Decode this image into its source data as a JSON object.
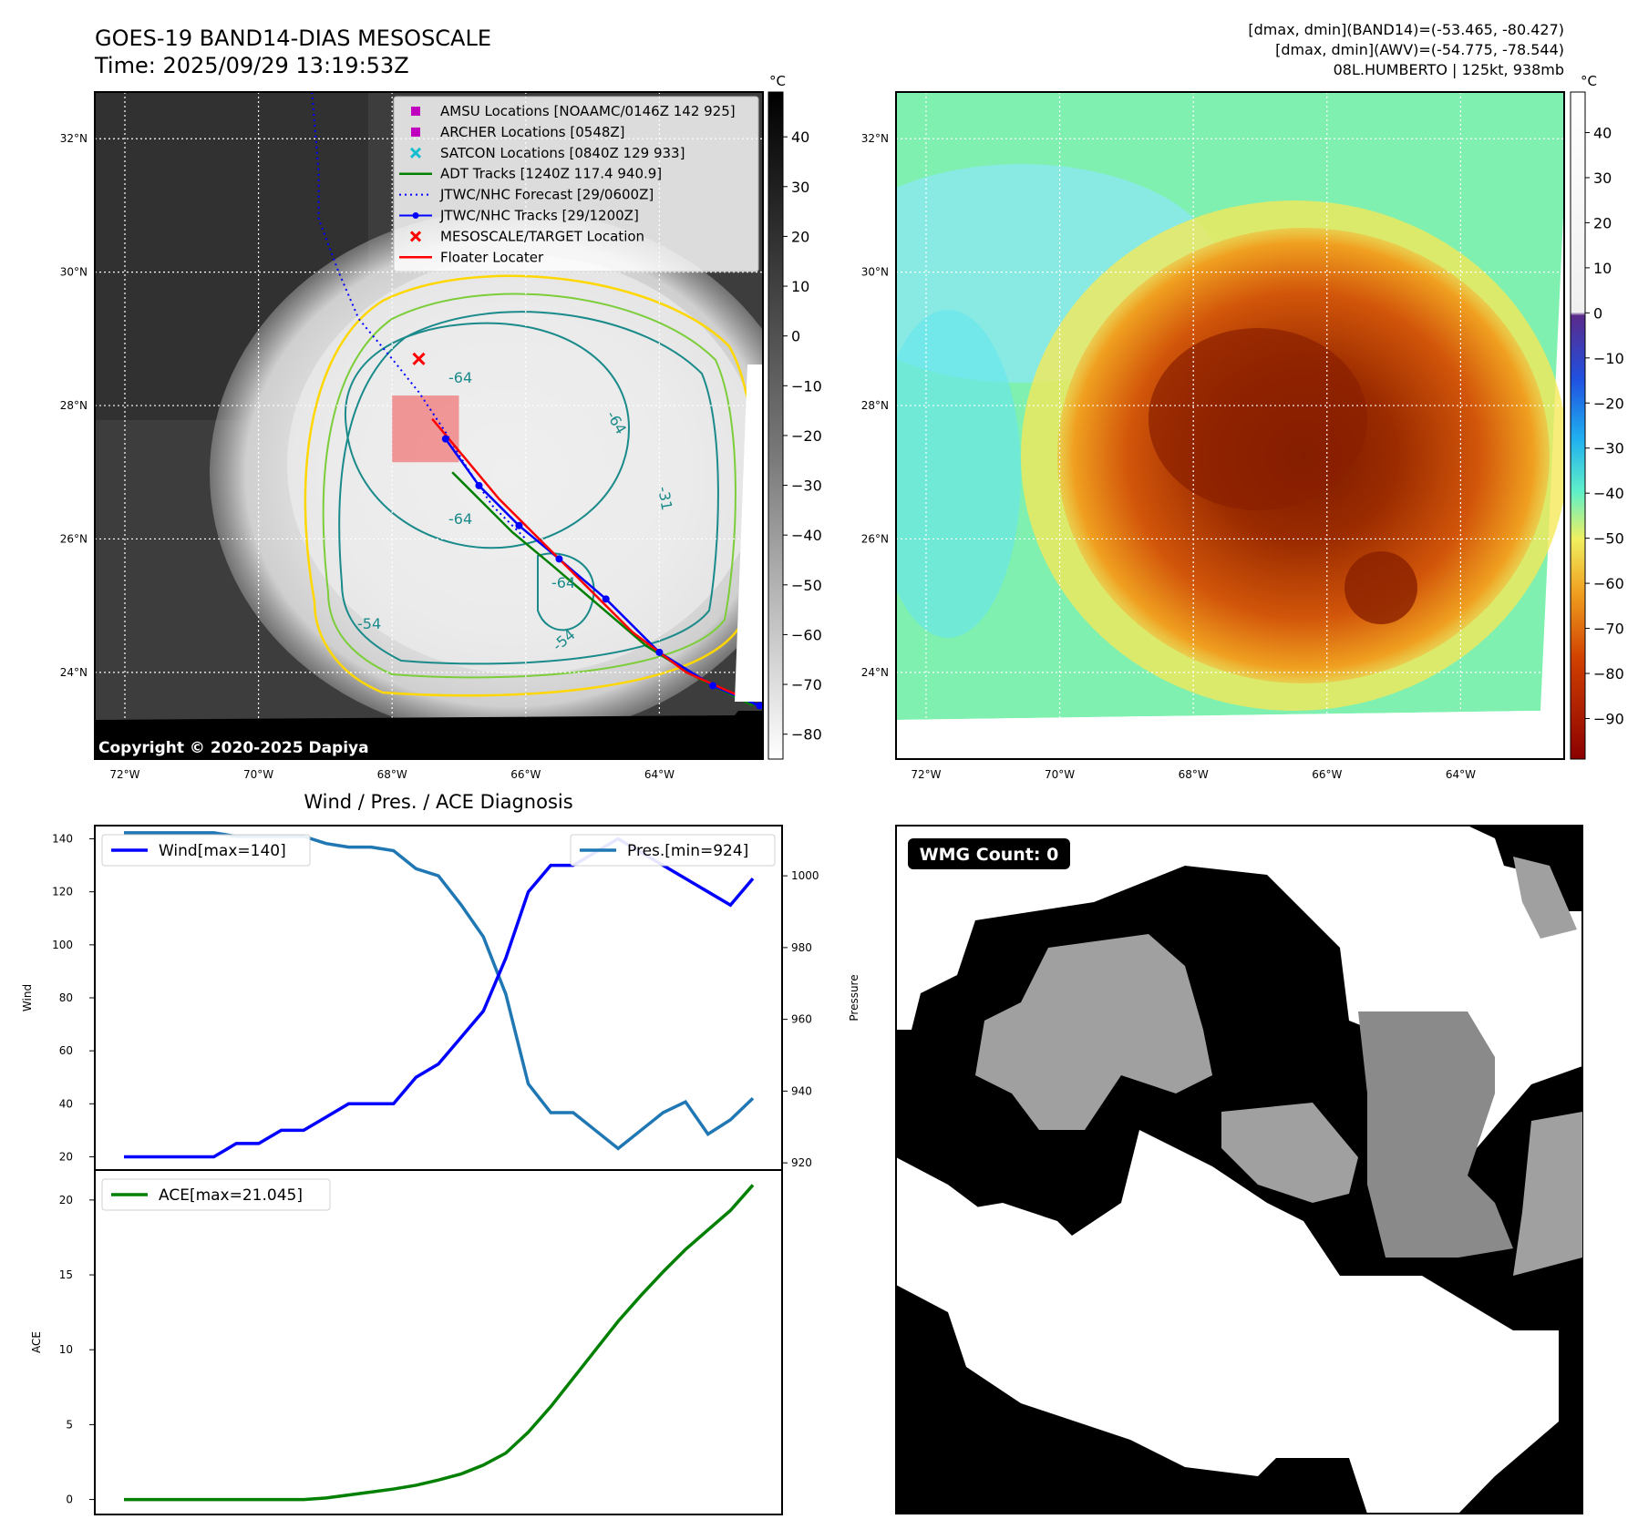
{
  "header": {
    "title_line1": "GOES-19 BAND14-DIAS MESOSCALE",
    "title_line2": "Time: 2025/09/29 13:19:53Z",
    "info_line1": "[dmax, dmin](BAND14)=(-53.465, -80.427)",
    "info_line2": "[dmax, dmin](AWV)=(-54.775, -78.544)",
    "info_line3": "08L.HUMBERTO | 125kt, 938mb"
  },
  "map_axes": {
    "lat_labels": [
      "32°N",
      "30°N",
      "28°N",
      "26°N",
      "24°N"
    ],
    "lat_values": [
      32,
      30,
      28,
      26,
      24
    ],
    "lon_labels": [
      "72°W",
      "70°W",
      "68°W",
      "66°W",
      "64°W"
    ],
    "lon_values": [
      -72,
      -70,
      -68,
      -66,
      -64
    ],
    "lat_range": [
      22.7,
      32.7
    ],
    "lon_range": [
      -72.45,
      -62.45
    ]
  },
  "ir_panel": {
    "copyright": "Copyright © 2020-2025 Dapiya",
    "colorbar_unit": "°C",
    "colorbar_ticks": [
      "40",
      "30",
      "20",
      "10",
      "0",
      "−10",
      "−20",
      "−30",
      "−40",
      "−50",
      "−60",
      "−70",
      "−80"
    ],
    "colorbar_tick_values": [
      40,
      30,
      20,
      10,
      0,
      -10,
      -20,
      -30,
      -40,
      -50,
      -60,
      -70,
      -80
    ],
    "colorbar_range": [
      -85,
      49
    ],
    "contour_labels": [
      "-64",
      "-64",
      "-64",
      "-64",
      "-54",
      "-54",
      "-31"
    ],
    "legend": [
      {
        "label": "AMSU Locations [NOAAMC/0146Z 142 925]",
        "marker": "square",
        "color": "#bf00bf"
      },
      {
        "label": "ARCHER Locations [0548Z]",
        "marker": "square",
        "color": "#bf00bf"
      },
      {
        "label": "SATCON Locations [0840Z 129 933]",
        "marker": "x",
        "color": "#17becf"
      },
      {
        "label": "ADT Tracks [1240Z 117.4 940.9]",
        "marker": "line",
        "color": "#008000"
      },
      {
        "label": "JTWC/NHC Forecast [29/0600Z]",
        "marker": "dotted",
        "color": "#0000ff"
      },
      {
        "label": "JTWC/NHC Tracks [29/1200Z]",
        "marker": "line-dot",
        "color": "#0000ff"
      },
      {
        "label": "MESOSCALE/TARGET Location",
        "marker": "x",
        "color": "#ff0000"
      },
      {
        "label": "Floater Locater",
        "marker": "line",
        "color": "#ff0000"
      }
    ],
    "target_location": {
      "lat": 28.7,
      "lon": -67.6
    },
    "floater_box": {
      "lat_min": 27.15,
      "lat_max": 28.15,
      "lon_min": -68.0,
      "lon_max": -67.0
    },
    "forecast_track": [
      [
        -69.2,
        32.7
      ],
      [
        -69.1,
        31.5
      ],
      [
        -69.1,
        30.8
      ],
      [
        -68.8,
        30.0
      ],
      [
        -68.5,
        29.3
      ],
      [
        -68.0,
        28.7
      ],
      [
        -67.6,
        28.2
      ],
      [
        -67.2,
        27.6
      ],
      [
        -66.9,
        27.1
      ],
      [
        -66.5,
        26.5
      ],
      [
        -66.0,
        26.0
      ]
    ],
    "best_track": [
      [
        -67.2,
        27.5
      ],
      [
        -66.7,
        26.8
      ],
      [
        -66.1,
        26.2
      ],
      [
        -65.5,
        25.7
      ],
      [
        -64.8,
        25.1
      ],
      [
        -64.0,
        24.3
      ],
      [
        -63.2,
        23.8
      ],
      [
        -62.5,
        23.5
      ]
    ],
    "adt_track": [
      [
        -67.1,
        27.0
      ],
      [
        -66.7,
        26.6
      ],
      [
        -66.2,
        26.1
      ],
      [
        -65.6,
        25.6
      ],
      [
        -64.9,
        25.0
      ],
      [
        -64.2,
        24.4
      ],
      [
        -63.4,
        23.9
      ],
      [
        -62.6,
        23.5
      ]
    ],
    "floater_track": [
      [
        -67.4,
        27.8
      ],
      [
        -66.9,
        27.2
      ],
      [
        -66.4,
        26.6
      ],
      [
        -65.8,
        26.0
      ],
      [
        -65.1,
        25.3
      ],
      [
        -64.4,
        24.6
      ],
      [
        -63.6,
        24.0
      ],
      [
        -62.7,
        23.6
      ]
    ]
  },
  "awv_panel": {
    "colorbar_unit": "°C",
    "colorbar_ticks": [
      "40",
      "30",
      "20",
      "10",
      "0",
      "−10",
      "−20",
      "−30",
      "−40",
      "−50",
      "−60",
      "−70",
      "−80",
      "−90"
    ],
    "colorbar_tick_values": [
      40,
      30,
      20,
      10,
      0,
      -10,
      -20,
      -30,
      -40,
      -50,
      -60,
      -70,
      -80,
      -90
    ],
    "colorbar_range": [
      -99,
      49
    ]
  },
  "diagnosis": {
    "title": "Wind / Pres. / ACE Diagnosis",
    "wind_ylabel": "Wind",
    "pressure_ylabel": "Pressure",
    "ace_ylabel": "ACE"
  },
  "wmg_panel": {
    "badge": "WMG Count: 0"
  },
  "colors": {
    "wind": "#0000ff",
    "pressure": "#1f77b4",
    "ace": "#008000",
    "contour_yellow": "#ffd700",
    "contour_green": "#7ccd3a",
    "contour_teal": "#1a8a8a"
  },
  "chart_data": [
    {
      "type": "line",
      "title": "Wind / Pres. / ACE Diagnosis",
      "xlabel": "",
      "ylabel": "Wind",
      "ylim": [
        15,
        145
      ],
      "y2label": "Pressure",
      "y2lim": [
        918,
        1014
      ],
      "yticks": [
        20,
        40,
        60,
        80,
        100,
        120,
        140
      ],
      "y2ticks": [
        920,
        940,
        960,
        980,
        1000
      ],
      "x": [
        0,
        1,
        2,
        3,
        4,
        5,
        6,
        7,
        8,
        9,
        10,
        11,
        12,
        13,
        14,
        15,
        16,
        17,
        18,
        19,
        20,
        21,
        22,
        23,
        24,
        25,
        26,
        27,
        28
      ],
      "series": [
        {
          "name": "Wind[max=140]",
          "axis": "left",
          "values": [
            20,
            20,
            20,
            20,
            20,
            25,
            25,
            30,
            30,
            35,
            40,
            40,
            40,
            50,
            55,
            65,
            75,
            95,
            120,
            130,
            130,
            135,
            140,
            135,
            130,
            125,
            120,
            115,
            125
          ]
        },
        {
          "name": "Pres.[min=924]",
          "axis": "right",
          "values": [
            1012,
            1012,
            1012,
            1012,
            1012,
            1011,
            1011,
            1011,
            1011,
            1009,
            1008,
            1008,
            1007,
            1002,
            1000,
            992,
            983,
            967,
            942,
            934,
            934,
            929,
            924,
            929,
            934,
            937,
            928,
            932,
            938
          ]
        }
      ]
    },
    {
      "type": "line",
      "title": "",
      "xlabel": "",
      "ylabel": "ACE",
      "ylim": [
        -1,
        22
      ],
      "yticks": [
        0,
        5,
        10,
        15,
        20
      ],
      "x": [
        0,
        1,
        2,
        3,
        4,
        5,
        6,
        7,
        8,
        9,
        10,
        11,
        12,
        13,
        14,
        15,
        16,
        17,
        18,
        19,
        20,
        21,
        22,
        23,
        24,
        25,
        26,
        27,
        28
      ],
      "series": [
        {
          "name": "ACE[max=21.045]",
          "values": [
            0,
            0,
            0,
            0,
            0,
            0,
            0,
            0,
            0,
            0.1,
            0.3,
            0.5,
            0.7,
            0.95,
            1.3,
            1.7,
            2.3,
            3.1,
            4.5,
            6.2,
            8.1,
            10.0,
            11.9,
            13.6,
            15.2,
            16.7,
            18.0,
            19.3,
            21.0
          ]
        }
      ]
    }
  ]
}
